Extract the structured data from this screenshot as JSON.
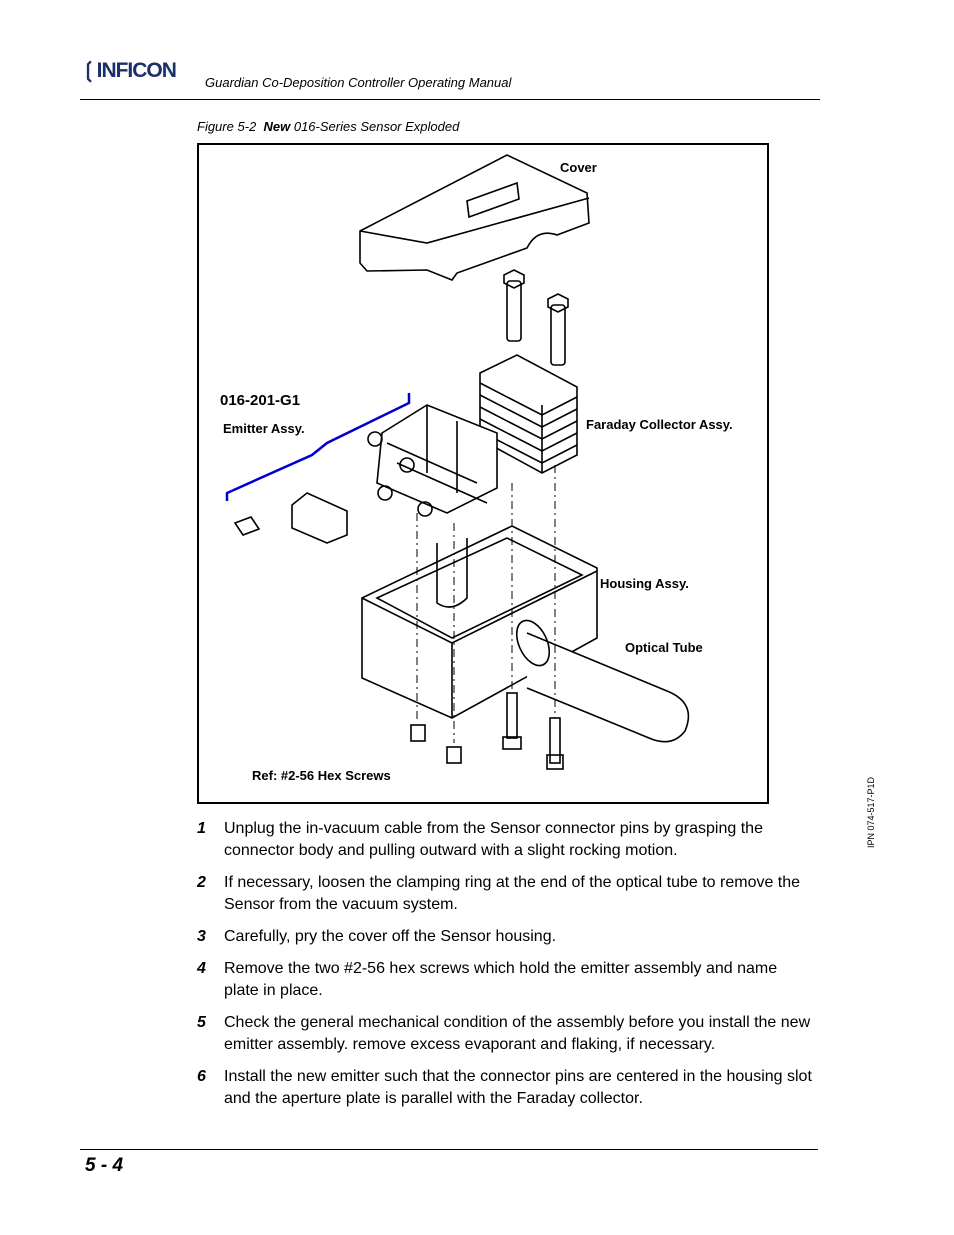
{
  "header": {
    "logo": "INFICON",
    "title": "Guardian Co-Deposition Controller Operating Manual"
  },
  "figure": {
    "caption": {
      "label": "Figure 5-2",
      "emphasis": "New",
      "text": "016-Series Sensor Exploded"
    },
    "labels": {
      "cover": "Cover",
      "part_number": "016-201-G1",
      "emitter": "Emitter Assy.",
      "faraday": "Faraday Collector Assy.",
      "housing": "Housing Assy.",
      "tube": "Optical Tube",
      "screws": "Ref: #2-56 Hex Screws"
    }
  },
  "steps": [
    {
      "number": "1",
      "text": "Unplug the in-vacuum cable from the Sensor connector pins by grasping the connector body and pulling outward with a slight rocking motion."
    },
    {
      "number": "2",
      "text": "If necessary, loosen the clamping ring at the end of the optical tube to remove the Sensor from the vacuum system."
    },
    {
      "number": "3",
      "text": "Carefully, pry the cover off the Sensor housing."
    },
    {
      "number": "4",
      "text": "Remove the two #2-56 hex screws which hold the emitter assembly and name plate in place."
    },
    {
      "number": "5",
      "text": "Check the general mechanical condition of the assembly before you install the new emitter assembly. remove excess evaporant and flaking, if necessary."
    },
    {
      "number": "6",
      "text": "Install the new emitter such that the connector pins are centered in the housing slot and the aperture plate is parallel with the Faraday collector."
    }
  ],
  "side_note": "IPN 074-517-P1D",
  "footer": {
    "page": "5 - 4"
  }
}
